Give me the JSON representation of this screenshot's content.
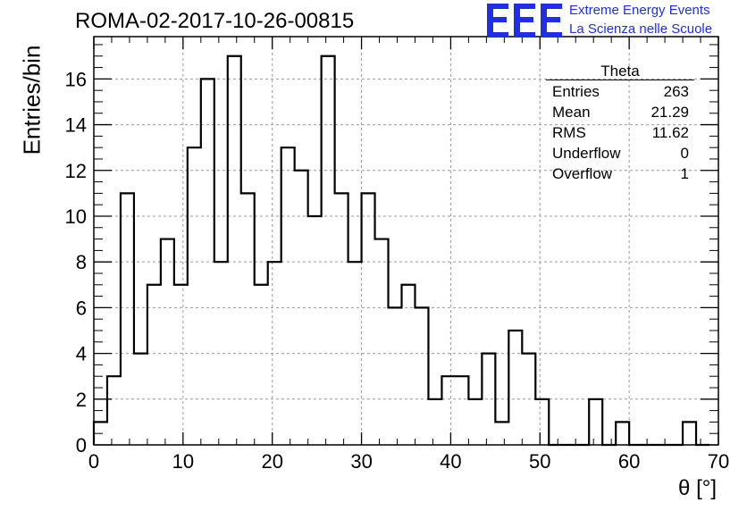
{
  "header": {
    "title": "ROMA-02-2017-10-26-00815"
  },
  "logo": {
    "mark": "EEE",
    "line1": "Extreme Energy Events",
    "line2": "La Scienza nelle Scuole",
    "color": "#1f2fe8"
  },
  "stats_box": {
    "title": "Theta",
    "rows": [
      {
        "label": "Entries",
        "value": "263"
      },
      {
        "label": "Mean",
        "value": "21.29"
      },
      {
        "label": "RMS",
        "value": "11.62"
      },
      {
        "label": "Underflow",
        "value": "0"
      },
      {
        "label": "Overflow",
        "value": "1"
      }
    ]
  },
  "chart_data": {
    "type": "bar",
    "histogram": true,
    "title": "ROMA-02-2017-10-26-00815",
    "xlabel": "θ [°]",
    "ylabel": "Entries/bin",
    "xlim": [
      0,
      70
    ],
    "ylim": [
      0,
      17.85
    ],
    "grid": true,
    "bin_width": 1.5,
    "bin_edges_start": 0,
    "values": [
      1,
      3,
      11,
      4,
      7,
      9,
      7,
      13,
      16,
      8,
      17,
      11,
      7,
      8,
      13,
      12,
      10,
      17,
      11,
      8,
      11,
      9,
      6,
      7,
      6,
      2,
      3,
      3,
      2,
      4,
      1,
      5,
      4,
      2,
      0,
      0,
      0,
      2,
      0,
      1,
      0,
      0,
      0,
      0,
      1,
      0
    ],
    "xticks": [
      0,
      10,
      20,
      30,
      40,
      50,
      60,
      70
    ],
    "yticks": [
      0,
      2,
      4,
      6,
      8,
      10,
      12,
      14,
      16
    ]
  }
}
